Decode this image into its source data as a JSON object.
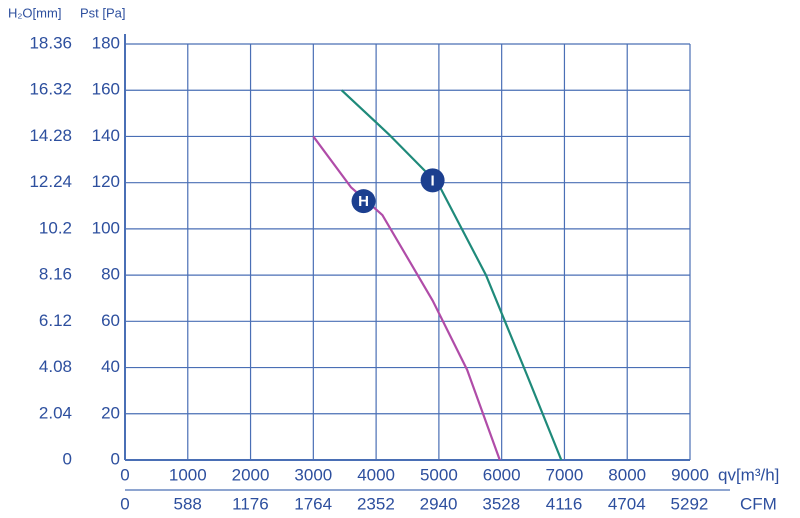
{
  "chart_data": {
    "type": "line",
    "y2_label": "H₂O[mm]",
    "y_label": "Pst [Pa]",
    "x_label": "qv[m³/h]",
    "x2_label": "CFM",
    "xlim": [
      0,
      9000
    ],
    "xticks": [
      0,
      1000,
      2000,
      3000,
      4000,
      5000,
      6000,
      7000,
      8000,
      9000
    ],
    "x2lim": [
      0,
      5297
    ],
    "x2ticks": [
      0,
      588,
      1176,
      1764,
      2352,
      2940,
      3528,
      4116,
      4704,
      5292
    ],
    "ylim": [
      0,
      180
    ],
    "yticks": [
      0,
      20,
      40,
      60,
      80,
      100,
      120,
      140,
      160,
      180
    ],
    "y2lim": [
      0,
      18.36
    ],
    "y2ticks": [
      0,
      2.04,
      4.08,
      6.12,
      8.16,
      10.2,
      12.24,
      14.28,
      16.32,
      18.36
    ],
    "grid": true,
    "series": [
      {
        "name": "H",
        "color": "#b04ca8",
        "x": [
          3000,
          3600,
          4100,
          4900,
          5450,
          5970
        ],
        "values": [
          140,
          118,
          106,
          69,
          39,
          0
        ],
        "label_at": [
          3800,
          112
        ]
      },
      {
        "name": "I",
        "color": "#1f8a7a",
        "x": [
          3450,
          4200,
          5000,
          5750,
          6400,
          6950
        ],
        "values": [
          160,
          141,
          119,
          80,
          37,
          0
        ],
        "label_at": [
          4900,
          121
        ]
      }
    ]
  }
}
